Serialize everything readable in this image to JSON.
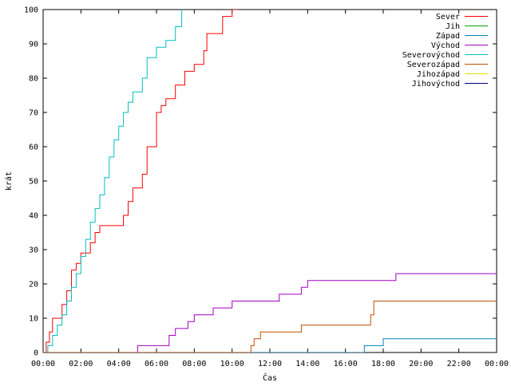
{
  "chart_data": {
    "type": "line",
    "xlabel": "Čas",
    "ylabel": "krát",
    "xlim": [
      "00:00",
      "24:00"
    ],
    "ylim": [
      0,
      100
    ],
    "x_ticks": [
      "00:00",
      "02:00",
      "04:00",
      "06:00",
      "08:00",
      "10:00",
      "12:00",
      "14:00",
      "16:00",
      "18:00",
      "20:00",
      "22:00",
      "00:00"
    ],
    "y_ticks": [
      0,
      10,
      20,
      30,
      40,
      50,
      60,
      70,
      80,
      90,
      100
    ],
    "legend_position": "top-right",
    "grid": false,
    "series": [
      {
        "name": "Sever",
        "color": "#ff0000",
        "x": [
          "00:00",
          "00:10",
          "00:20",
          "00:30",
          "00:45",
          "01:00",
          "01:15",
          "01:30",
          "01:45",
          "02:00",
          "02:15",
          "02:30",
          "02:45",
          "03:00",
          "03:15",
          "03:30",
          "03:45",
          "04:00",
          "04:15",
          "04:30",
          "04:45",
          "05:00",
          "05:15",
          "05:30",
          "06:00",
          "06:15",
          "06:30",
          "07:00",
          "07:30",
          "08:00",
          "08:30",
          "08:40",
          "09:00",
          "09:30",
          "10:00",
          "10:20"
        ],
        "y": [
          0,
          3,
          6,
          10,
          10,
          14,
          18,
          24,
          26,
          29,
          29,
          32,
          35,
          37,
          37,
          37,
          37,
          37,
          40,
          44,
          48,
          48,
          52,
          60,
          70,
          72,
          74,
          78,
          82,
          84,
          88,
          93,
          93,
          98,
          100,
          100
        ]
      },
      {
        "name": "Jih",
        "color": "#00a000",
        "x": [],
        "y": []
      },
      {
        "name": "Západ",
        "color": "#0080c0",
        "x": [
          "00:00",
          "16:30",
          "17:00",
          "17:45",
          "18:00",
          "24:00"
        ],
        "y": [
          0,
          0,
          2,
          2,
          4,
          4
        ]
      },
      {
        "name": "Východ",
        "color": "#a000c0",
        "x": [
          "00:00",
          "04:40",
          "05:00",
          "06:20",
          "06:40",
          "07:00",
          "07:40",
          "08:00",
          "09:00",
          "09:40",
          "10:00",
          "12:00",
          "12:30",
          "13:40",
          "14:00",
          "15:00",
          "16:00",
          "18:40",
          "24:00"
        ],
        "y": [
          0,
          0,
          2,
          2,
          5,
          7,
          9,
          11,
          13,
          13,
          15,
          15,
          17,
          19,
          21,
          21,
          21,
          23,
          23
        ]
      },
      {
        "name": "Severovýchod",
        "color": "#00c0c0",
        "x": [
          "00:00",
          "00:15",
          "00:30",
          "00:45",
          "01:00",
          "01:15",
          "01:30",
          "01:45",
          "02:00",
          "02:15",
          "02:30",
          "02:45",
          "03:00",
          "03:15",
          "03:30",
          "03:45",
          "04:00",
          "04:15",
          "04:30",
          "04:45",
          "05:00",
          "05:15",
          "05:30",
          "06:00",
          "06:30",
          "07:00",
          "07:20"
        ],
        "y": [
          0,
          2,
          5,
          8,
          11,
          15,
          19,
          23,
          28,
          33,
          38,
          42,
          46,
          51,
          57,
          62,
          66,
          70,
          73,
          76,
          76,
          80,
          86,
          89,
          91,
          95,
          100
        ]
      },
      {
        "name": "Severozápad",
        "color": "#c05000",
        "x": [
          "00:00",
          "10:50",
          "11:00",
          "11:10",
          "11:30",
          "11:40",
          "12:00",
          "13:30",
          "13:40",
          "14:00",
          "15:00",
          "16:00",
          "17:00",
          "17:20",
          "17:30",
          "24:00"
        ],
        "y": [
          0,
          0,
          2,
          4,
          6,
          6,
          6,
          6,
          8,
          8,
          8,
          8,
          8,
          11,
          15,
          15
        ]
      },
      {
        "name": "Jihozápad",
        "color": "#e0e000",
        "x": [],
        "y": []
      },
      {
        "name": "Jihovýchod",
        "color": "#000080",
        "x": [],
        "y": []
      }
    ]
  }
}
